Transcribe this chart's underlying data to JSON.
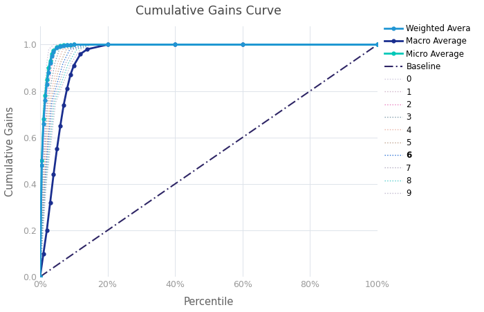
{
  "title": "Cumulative Gains Curve",
  "xlabel": "Percentile",
  "ylabel": "Cumulative Gains",
  "background_color": "#ffffff",
  "grid_color": "#dde3ea",
  "weighted_avg_color": "#2196d4",
  "macro_avg_color": "#1a2e8f",
  "micro_avg_color": "#00c8b8",
  "baseline_color": "#2e2565",
  "class_colors": [
    "#c8c0d8",
    "#c8a8c0",
    "#e870b8",
    "#7090a0",
    "#e8a898",
    "#b89880",
    "#1060d0",
    "#a8a0b8",
    "#40c8c8",
    "#b8b0c8"
  ],
  "class_labels": [
    "0",
    "1",
    "2",
    "3",
    "4",
    "5",
    "6",
    "7",
    "8",
    "9"
  ],
  "baseline_x": [
    0,
    1.0
  ],
  "baseline_y": [
    0,
    1.0
  ],
  "figsize": [
    7.0,
    4.51
  ],
  "dpi": 100
}
